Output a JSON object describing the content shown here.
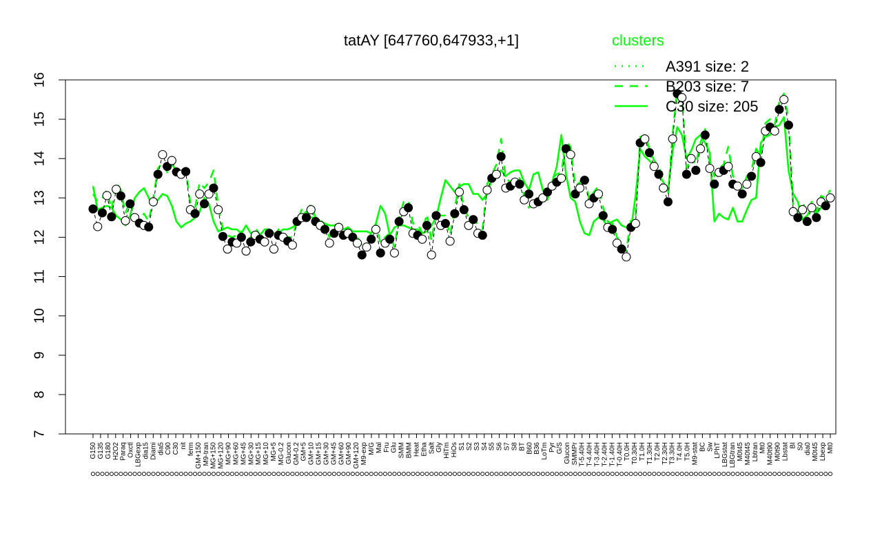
{
  "chart_data": {
    "type": "line",
    "title": "tatAY [647760,647933,+1]",
    "ylim": [
      7,
      16
    ],
    "yticks": [
      "7",
      "8",
      "9",
      "10",
      "11",
      "12",
      "13",
      "14",
      "15",
      "16"
    ],
    "xlabels": [
      "G150",
      "G135",
      "G180",
      "H2O2",
      "Paraq",
      "Oxctl",
      "LBGexp",
      "dia15",
      "Diami",
      "dia5",
      "C90",
      "C30",
      "nit",
      "ferm",
      "GM+150",
      "M9-tran",
      "MG+150",
      "MG+120",
      "MG+90",
      "MG+60",
      "MG+45",
      "MG+30",
      "MG+15",
      "MG+10",
      "MG+5",
      "MG-0.2",
      "Glucon",
      "GM-0.2",
      "GM+5",
      "GM+10",
      "GM+15",
      "GM+30",
      "GM+45",
      "GM+60",
      "GM+90",
      "GM+120",
      "M9-exp",
      "M/G",
      "Mal",
      "Fru",
      "Glu",
      "SMM",
      "BMM",
      "Heat",
      "Etha",
      "Salt",
      "Gly",
      "HiTm",
      "HiOs",
      "S1",
      "S2",
      "S3",
      "S4",
      "S5",
      "S6",
      "S7",
      "S8",
      "BT",
      "B60",
      "B36",
      "LoTm",
      "Pyr",
      "G/S",
      "Glucon",
      "SMMPr",
      "T-5.40H",
      "T-4.40H",
      "T-3.40H",
      "T-2.40H",
      "T-1.40H",
      "T-0.40H",
      "T0.0H",
      "T0.30H",
      "T1.0H",
      "T1.30H",
      "T2.0H",
      "T2.30H",
      "T3.30H",
      "T4.0H",
      "T5.0H",
      "M9-stat",
      "BC",
      "Sw",
      "LPhT",
      "LBGstat",
      "LBGtran",
      "M0t45",
      "M40t45",
      "Lbtran",
      "Mt0",
      "M40t90",
      "M0t90",
      "Lbstat",
      "BI",
      "S0",
      "dia0",
      "M0t45",
      "Lbexp",
      "Mt0"
    ],
    "points": [
      [
        1,
        12.72
      ],
      [
        2,
        12.27
      ],
      [
        3,
        12.62
      ],
      [
        4,
        13.06
      ],
      [
        5,
        12.52
      ],
      [
        6,
        13.22
      ],
      [
        7,
        13.05
      ],
      [
        8,
        12.42
      ],
      [
        9,
        12.85
      ],
      [
        10,
        12.5
      ],
      [
        11,
        12.36
      ],
      [
        12,
        12.3
      ],
      [
        13,
        12.26
      ],
      [
        14,
        12.9
      ],
      [
        15,
        13.6
      ],
      [
        16,
        14.1
      ],
      [
        17,
        13.8
      ],
      [
        18,
        13.95
      ],
      [
        19,
        13.66
      ],
      [
        20,
        13.6
      ],
      [
        21,
        13.67
      ],
      [
        22,
        12.7
      ],
      [
        23,
        12.6
      ],
      [
        24,
        13.1
      ],
      [
        25,
        12.85
      ],
      [
        26,
        13.1
      ],
      [
        27,
        13.25
      ],
      [
        28,
        12.7
      ],
      [
        29,
        12.02
      ],
      [
        30,
        11.7
      ],
      [
        31,
        11.88
      ],
      [
        32,
        11.85
      ],
      [
        33,
        12.0
      ],
      [
        34,
        11.65
      ],
      [
        35,
        11.88
      ],
      [
        36,
        12.05
      ],
      [
        37,
        11.95
      ],
      [
        38,
        11.88
      ],
      [
        39,
        12.1
      ],
      [
        40,
        11.7
      ],
      [
        41,
        12.05
      ],
      [
        42,
        12.0
      ],
      [
        43,
        11.9
      ],
      [
        44,
        11.8
      ],
      [
        45,
        12.4
      ],
      [
        46,
        12.5
      ],
      [
        47,
        12.5
      ],
      [
        48,
        12.7
      ],
      [
        49,
        12.4
      ],
      [
        50,
        12.3
      ],
      [
        51,
        12.2
      ],
      [
        52,
        11.85
      ],
      [
        53,
        12.1
      ],
      [
        54,
        12.25
      ],
      [
        55,
        12.05
      ],
      [
        56,
        12.1
      ],
      [
        57,
        12.0
      ],
      [
        58,
        11.85
      ],
      [
        59,
        11.55
      ],
      [
        60,
        11.75
      ],
      [
        61,
        11.95
      ],
      [
        62,
        12.2
      ],
      [
        63,
        11.6
      ],
      [
        64,
        11.85
      ],
      [
        65,
        11.95
      ],
      [
        66,
        11.6
      ],
      [
        67,
        12.4
      ],
      [
        68,
        12.65
      ],
      [
        69,
        12.75
      ],
      [
        70,
        12.1
      ],
      [
        71,
        12.05
      ],
      [
        72,
        11.95
      ],
      [
        73,
        12.3
      ],
      [
        74,
        11.55
      ],
      [
        75,
        12.55
      ],
      [
        76,
        12.3
      ],
      [
        77,
        12.35
      ],
      [
        78,
        11.9
      ],
      [
        79,
        12.6
      ],
      [
        80,
        13.15
      ],
      [
        81,
        12.7
      ],
      [
        82,
        12.3
      ],
      [
        83,
        12.45
      ],
      [
        84,
        12.1
      ],
      [
        85,
        12.05
      ],
      [
        86,
        13.2
      ],
      [
        87,
        13.5
      ],
      [
        88,
        13.6
      ],
      [
        89,
        14.05
      ],
      [
        90,
        13.25
      ],
      [
        91,
        13.3
      ],
      [
        92,
        13.4
      ],
      [
        93,
        13.35
      ],
      [
        94,
        12.95
      ],
      [
        95,
        13.1
      ],
      [
        96,
        12.85
      ],
      [
        97,
        12.9
      ],
      [
        98,
        13.0
      ],
      [
        99,
        13.15
      ],
      [
        100,
        13.3
      ],
      [
        101,
        13.4
      ],
      [
        102,
        13.5
      ],
      [
        103,
        14.25
      ],
      [
        104,
        14.1
      ],
      [
        105,
        13.1
      ],
      [
        106,
        13.25
      ],
      [
        107,
        13.45
      ],
      [
        108,
        12.85
      ],
      [
        109,
        13.0
      ],
      [
        110,
        13.1
      ],
      [
        111,
        12.55
      ],
      [
        112,
        12.25
      ],
      [
        113,
        12.2
      ],
      [
        114,
        11.85
      ],
      [
        115,
        11.7
      ],
      [
        116,
        11.5
      ],
      [
        117,
        12.25
      ],
      [
        118,
        12.35
      ],
      [
        119,
        14.4
      ],
      [
        120,
        14.5
      ],
      [
        121,
        14.15
      ],
      [
        122,
        13.8
      ],
      [
        123,
        13.6
      ],
      [
        124,
        13.25
      ],
      [
        125,
        12.9
      ],
      [
        126,
        14.5
      ],
      [
        127,
        15.65
      ],
      [
        128,
        15.55
      ],
      [
        129,
        13.6
      ],
      [
        130,
        14.0
      ],
      [
        131,
        13.7
      ],
      [
        132,
        14.25
      ],
      [
        133,
        14.6
      ],
      [
        134,
        13.75
      ],
      [
        135,
        13.35
      ],
      [
        136,
        13.65
      ],
      [
        137,
        13.7
      ],
      [
        138,
        13.8
      ],
      [
        139,
        13.35
      ],
      [
        140,
        13.3
      ],
      [
        141,
        13.1
      ],
      [
        142,
        13.35
      ],
      [
        143,
        13.55
      ],
      [
        144,
        14.05
      ],
      [
        145,
        13.9
      ],
      [
        146,
        14.7
      ],
      [
        147,
        14.8
      ],
      [
        148,
        14.7
      ],
      [
        149,
        15.25
      ],
      [
        150,
        15.5
      ],
      [
        151,
        14.85
      ],
      [
        152,
        12.65
      ],
      [
        153,
        12.5
      ],
      [
        154,
        12.7
      ],
      [
        155,
        12.4
      ],
      [
        156,
        12.75
      ],
      [
        157,
        12.5
      ],
      [
        158,
        12.9
      ],
      [
        159,
        12.8
      ],
      [
        160,
        13.0
      ]
    ],
    "series": [
      {
        "name": "C30 size: 205",
        "style": "solid",
        "color": "#00ff00",
        "values": [
          13.3,
          12.7,
          12.75,
          12.8,
          12.75,
          12.55,
          12.45,
          12.3,
          12.55,
          13.0,
          13.15,
          13.25,
          13.0,
          12.8,
          12.95,
          13.1,
          13.05,
          12.8,
          12.4,
          12.25,
          12.35,
          12.4,
          12.5,
          12.65,
          13.0,
          12.85,
          12.4,
          12.15,
          12.2,
          12.25,
          12.2,
          12.2,
          12.1,
          12.3,
          12.1,
          12.15,
          12.05,
          12.2,
          12.2,
          12.1,
          12.1,
          12.2,
          12.2,
          12.25,
          12.35,
          12.55,
          12.65,
          12.5,
          12.5,
          12.4,
          12.35,
          12.3,
          12.3,
          12.2,
          12.2,
          12.25,
          12.15,
          12.15,
          12.15,
          12.15,
          12.1,
          12.35,
          12.8,
          12.6,
          12.05,
          12.25,
          12.3,
          12.3,
          12.25,
          12.2,
          12.2,
          12.1,
          12.15,
          12.3,
          12.5,
          13.0,
          13.45,
          13.3,
          13.15,
          13.3,
          13.35,
          13.35,
          13.1,
          13.1,
          12.95,
          13.1,
          13.45,
          13.6,
          13.7,
          13.55,
          13.65,
          13.7,
          13.7,
          13.4,
          13.2,
          13.6,
          13.65,
          13.2,
          12.95,
          13.4,
          13.8,
          14.6,
          13.6,
          13.0,
          12.9,
          12.4,
          12.1,
          12.05,
          12.4,
          12.5,
          12.45,
          12.25,
          12.4,
          12.45,
          12.3,
          12.25,
          12.2,
          13.05,
          14.25,
          14.05,
          13.95,
          13.8,
          13.6,
          13.4,
          13.2,
          14.2,
          14.8,
          14.6,
          14.0,
          14.2,
          14.5,
          14.6,
          14.4,
          14.15,
          12.4,
          12.6,
          12.5,
          12.45,
          12.75,
          12.4,
          12.4,
          12.7,
          12.95,
          13.0,
          14.4,
          14.55,
          14.6,
          14.8,
          14.85,
          15.05,
          13.7,
          13.1,
          12.9,
          12.45,
          12.55,
          12.75,
          12.6,
          12.75,
          12.9,
          13.05
        ]
      },
      {
        "name": "B203 size: 7",
        "style": "dashed",
        "color": "#00ff00",
        "values": [
          13.1,
          12.9,
          13.0,
          13.2,
          12.7,
          13.4,
          13.2,
          12.6,
          12.95,
          12.55,
          12.4,
          12.6,
          12.4,
          13.0,
          13.75,
          13.9,
          13.65,
          13.85,
          13.7,
          13.7,
          13.75,
          12.85,
          12.75,
          13.4,
          13.25,
          13.4,
          13.7,
          12.8,
          12.2,
          12.05,
          12.0,
          12.05,
          12.15,
          11.9,
          12.0,
          12.25,
          12.05,
          12.05,
          12.2,
          12.0,
          12.2,
          12.1,
          12.0,
          12.0,
          12.4,
          12.7,
          12.6,
          12.85,
          12.5,
          12.45,
          12.3,
          12.0,
          12.3,
          12.35,
          12.3,
          12.25,
          12.15,
          12.0,
          11.8,
          11.9,
          12.1,
          12.35,
          11.85,
          12.0,
          12.1,
          11.75,
          12.5,
          12.9,
          12.95,
          12.35,
          12.35,
          12.1,
          12.6,
          11.9,
          12.7,
          12.55,
          12.55,
          12.05,
          12.75,
          13.35,
          12.75,
          12.5,
          12.55,
          12.3,
          12.2,
          13.35,
          13.6,
          13.85,
          14.5,
          13.5,
          13.4,
          13.55,
          13.5,
          13.05,
          12.75,
          13.0,
          12.95,
          13.15,
          13.2,
          13.5,
          13.6,
          13.65,
          14.45,
          14.3,
          13.3,
          13.4,
          13.6,
          12.95,
          13.15,
          13.3,
          12.75,
          12.4,
          12.35,
          12.0,
          11.85,
          11.65,
          12.45,
          12.55,
          14.55,
          14.6,
          14.25,
          13.95,
          13.8,
          13.45,
          13.05,
          14.65,
          15.75,
          15.65,
          13.75,
          14.05,
          13.85,
          14.4,
          14.75,
          13.9,
          13.55,
          13.75,
          13.85,
          14.3,
          13.55,
          13.45,
          13.25,
          13.55,
          13.7,
          14.25,
          14.05,
          14.9,
          15.0,
          14.85,
          15.45,
          15.65,
          15.0,
          12.8,
          12.65,
          12.9,
          12.6,
          12.9,
          12.65,
          13.05,
          13.0,
          13.2
        ]
      },
      {
        "name": "A391 size: 2",
        "style": "dotted",
        "color": "#00ff00",
        "values": []
      }
    ],
    "legend": {
      "title": "clusters",
      "position": "top-right",
      "entries": [
        "A391 size: 2",
        "B203 size: 7",
        "C30 size: 205"
      ]
    },
    "filled_every": 2,
    "grid": false
  }
}
